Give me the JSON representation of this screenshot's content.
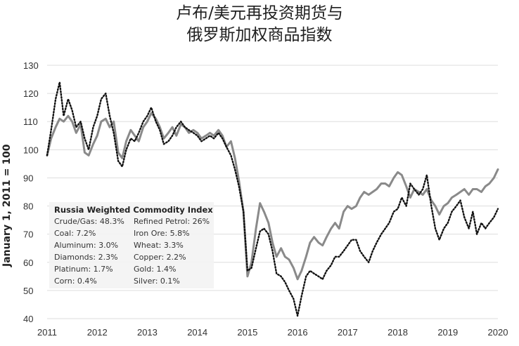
{
  "title_lines": [
    "卢布/美元再投资期货与",
    "俄罗斯加权商品指数"
  ],
  "chart_data": {
    "type": "line",
    "ylabel": "January 1, 2011 = 100",
    "xlabel": "",
    "xlim": [
      2011,
      2020
    ],
    "ylim": [
      40,
      130
    ],
    "x_ticks": [
      "2011",
      "2012",
      "2013",
      "2014",
      "2015",
      "2016",
      "2017",
      "2018",
      "2019",
      "2020"
    ],
    "y_ticks": [
      "40",
      "50",
      "60",
      "70",
      "80",
      "90",
      "100",
      "110",
      "120",
      "130"
    ],
    "grid": "horizontal",
    "series": [
      {
        "style": "solid",
        "color": "#8a8a8a",
        "points": [
          [
            2011.0,
            98
          ],
          [
            2011.08,
            104
          ],
          [
            2011.17,
            108
          ],
          [
            2011.25,
            111
          ],
          [
            2011.33,
            110
          ],
          [
            2011.42,
            112
          ],
          [
            2011.5,
            110
          ],
          [
            2011.58,
            106
          ],
          [
            2011.67,
            109
          ],
          [
            2011.75,
            99
          ],
          [
            2011.83,
            98
          ],
          [
            2011.92,
            102
          ],
          [
            2012.0,
            105
          ],
          [
            2012.08,
            110
          ],
          [
            2012.17,
            111
          ],
          [
            2012.25,
            108
          ],
          [
            2012.33,
            110
          ],
          [
            2012.42,
            99
          ],
          [
            2012.5,
            97
          ],
          [
            2012.58,
            103
          ],
          [
            2012.67,
            107
          ],
          [
            2012.75,
            105
          ],
          [
            2012.83,
            103
          ],
          [
            2012.92,
            108
          ],
          [
            2013.0,
            110
          ],
          [
            2013.08,
            113
          ],
          [
            2013.17,
            111
          ],
          [
            2013.25,
            108
          ],
          [
            2013.33,
            104
          ],
          [
            2013.42,
            106
          ],
          [
            2013.5,
            108
          ],
          [
            2013.58,
            105
          ],
          [
            2013.67,
            109
          ],
          [
            2013.75,
            108
          ],
          [
            2013.83,
            106
          ],
          [
            2013.92,
            107
          ],
          [
            2014.0,
            106
          ],
          [
            2014.08,
            104
          ],
          [
            2014.17,
            105
          ],
          [
            2014.25,
            106
          ],
          [
            2014.33,
            105
          ],
          [
            2014.42,
            107
          ],
          [
            2014.5,
            105
          ],
          [
            2014.58,
            101
          ],
          [
            2014.67,
            103
          ],
          [
            2014.75,
            97
          ],
          [
            2014.83,
            89
          ],
          [
            2014.92,
            78
          ],
          [
            2015.0,
            55
          ],
          [
            2015.08,
            60
          ],
          [
            2015.17,
            72
          ],
          [
            2015.25,
            81
          ],
          [
            2015.33,
            78
          ],
          [
            2015.42,
            74
          ],
          [
            2015.5,
            67
          ],
          [
            2015.58,
            62
          ],
          [
            2015.67,
            65
          ],
          [
            2015.75,
            62
          ],
          [
            2015.83,
            61
          ],
          [
            2015.92,
            58
          ],
          [
            2016.0,
            54
          ],
          [
            2016.08,
            57
          ],
          [
            2016.17,
            62
          ],
          [
            2016.25,
            67
          ],
          [
            2016.33,
            69
          ],
          [
            2016.42,
            67
          ],
          [
            2016.5,
            66
          ],
          [
            2016.58,
            69
          ],
          [
            2016.67,
            72
          ],
          [
            2016.75,
            74
          ],
          [
            2016.83,
            72
          ],
          [
            2016.92,
            78
          ],
          [
            2017.0,
            80
          ],
          [
            2017.08,
            79
          ],
          [
            2017.17,
            80
          ],
          [
            2017.25,
            83
          ],
          [
            2017.33,
            85
          ],
          [
            2017.42,
            84
          ],
          [
            2017.5,
            85
          ],
          [
            2017.58,
            86
          ],
          [
            2017.67,
            88
          ],
          [
            2017.75,
            88
          ],
          [
            2017.83,
            87
          ],
          [
            2017.92,
            90
          ],
          [
            2018.0,
            92
          ],
          [
            2018.08,
            91
          ],
          [
            2018.17,
            87
          ],
          [
            2018.25,
            83
          ],
          [
            2018.33,
            86
          ],
          [
            2018.42,
            85
          ],
          [
            2018.5,
            84
          ],
          [
            2018.58,
            86
          ],
          [
            2018.67,
            82
          ],
          [
            2018.75,
            80
          ],
          [
            2018.83,
            77
          ],
          [
            2018.92,
            80
          ],
          [
            2019.0,
            81
          ],
          [
            2019.08,
            83
          ],
          [
            2019.17,
            84
          ],
          [
            2019.25,
            85
          ],
          [
            2019.33,
            86
          ],
          [
            2019.42,
            84
          ],
          [
            2019.5,
            86
          ],
          [
            2019.58,
            86
          ],
          [
            2019.67,
            85
          ],
          [
            2019.75,
            87
          ],
          [
            2019.83,
            88
          ],
          [
            2019.92,
            90
          ],
          [
            2020.0,
            93
          ]
        ]
      },
      {
        "style": "dotted",
        "color": "#111111",
        "points": [
          [
            2011.0,
            98
          ],
          [
            2011.08,
            107
          ],
          [
            2011.17,
            118
          ],
          [
            2011.25,
            124
          ],
          [
            2011.33,
            112
          ],
          [
            2011.42,
            118
          ],
          [
            2011.5,
            114
          ],
          [
            2011.58,
            108
          ],
          [
            2011.67,
            110
          ],
          [
            2011.75,
            104
          ],
          [
            2011.83,
            100
          ],
          [
            2011.92,
            108
          ],
          [
            2012.0,
            112
          ],
          [
            2012.08,
            118
          ],
          [
            2012.17,
            120
          ],
          [
            2012.25,
            112
          ],
          [
            2012.33,
            106
          ],
          [
            2012.42,
            96
          ],
          [
            2012.5,
            94
          ],
          [
            2012.58,
            100
          ],
          [
            2012.67,
            104
          ],
          [
            2012.75,
            103
          ],
          [
            2012.83,
            106
          ],
          [
            2012.92,
            110
          ],
          [
            2013.0,
            112
          ],
          [
            2013.08,
            115
          ],
          [
            2013.17,
            110
          ],
          [
            2013.25,
            107
          ],
          [
            2013.33,
            102
          ],
          [
            2013.42,
            103
          ],
          [
            2013.5,
            105
          ],
          [
            2013.58,
            108
          ],
          [
            2013.67,
            110
          ],
          [
            2013.75,
            108
          ],
          [
            2013.83,
            107
          ],
          [
            2013.92,
            106
          ],
          [
            2014.0,
            105
          ],
          [
            2014.08,
            103
          ],
          [
            2014.17,
            104
          ],
          [
            2014.25,
            105
          ],
          [
            2014.33,
            104
          ],
          [
            2014.42,
            106
          ],
          [
            2014.5,
            104
          ],
          [
            2014.58,
            101
          ],
          [
            2014.67,
            98
          ],
          [
            2014.75,
            93
          ],
          [
            2014.83,
            87
          ],
          [
            2014.92,
            78
          ],
          [
            2015.0,
            57
          ],
          [
            2015.08,
            58
          ],
          [
            2015.17,
            65
          ],
          [
            2015.25,
            71
          ],
          [
            2015.33,
            72
          ],
          [
            2015.42,
            70
          ],
          [
            2015.5,
            64
          ],
          [
            2015.58,
            56
          ],
          [
            2015.67,
            55
          ],
          [
            2015.75,
            53
          ],
          [
            2015.83,
            50
          ],
          [
            2015.92,
            47
          ],
          [
            2016.0,
            41
          ],
          [
            2016.08,
            48
          ],
          [
            2016.17,
            55
          ],
          [
            2016.25,
            57
          ],
          [
            2016.33,
            56
          ],
          [
            2016.42,
            55
          ],
          [
            2016.5,
            54
          ],
          [
            2016.58,
            57
          ],
          [
            2016.67,
            59
          ],
          [
            2016.75,
            62
          ],
          [
            2016.83,
            62
          ],
          [
            2016.92,
            64
          ],
          [
            2017.0,
            66
          ],
          [
            2017.08,
            68
          ],
          [
            2017.17,
            68
          ],
          [
            2017.25,
            64
          ],
          [
            2017.33,
            62
          ],
          [
            2017.42,
            60
          ],
          [
            2017.5,
            64
          ],
          [
            2017.58,
            67
          ],
          [
            2017.67,
            70
          ],
          [
            2017.75,
            72
          ],
          [
            2017.83,
            74
          ],
          [
            2017.92,
            78
          ],
          [
            2018.0,
            79
          ],
          [
            2018.08,
            83
          ],
          [
            2018.17,
            80
          ],
          [
            2018.25,
            88
          ],
          [
            2018.33,
            86
          ],
          [
            2018.42,
            84
          ],
          [
            2018.5,
            86
          ],
          [
            2018.58,
            91
          ],
          [
            2018.67,
            80
          ],
          [
            2018.75,
            72
          ],
          [
            2018.83,
            68
          ],
          [
            2018.92,
            72
          ],
          [
            2019.0,
            74
          ],
          [
            2019.08,
            78
          ],
          [
            2019.17,
            80
          ],
          [
            2019.25,
            82
          ],
          [
            2019.33,
            76
          ],
          [
            2019.42,
            72
          ],
          [
            2019.5,
            78
          ],
          [
            2019.58,
            70
          ],
          [
            2019.67,
            74
          ],
          [
            2019.75,
            72
          ],
          [
            2019.83,
            74
          ],
          [
            2019.92,
            76
          ],
          [
            2020.0,
            79
          ]
        ]
      }
    ]
  },
  "legend": {
    "header": "Russia Weighted Commodity Index",
    "items": [
      "Crude/Gas: 48.3%",
      "Refined Petrol: 26%",
      "Coal: 7.2%",
      "Iron Ore: 5.8%",
      "Aluminum: 3.0%",
      "Wheat: 3.3%",
      "Diamonds: 2.3%",
      "Copper: 2.2%",
      "Platinum: 1.7%",
      "Gold: 1.4%",
      "Corn: 0.4%",
      "Silver: 0.1%"
    ]
  }
}
